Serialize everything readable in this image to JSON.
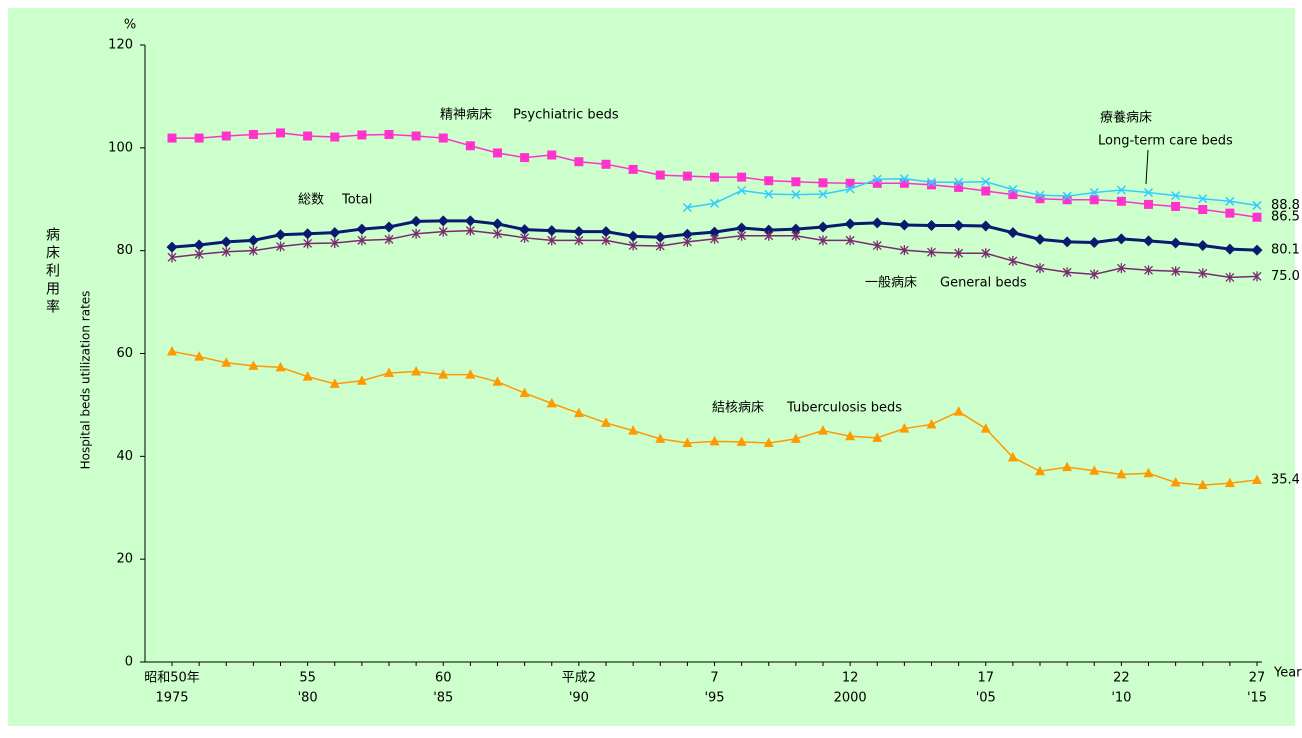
{
  "chart_data": {
    "type": "line",
    "y_unit": "%",
    "y_label_ja": "病床利用率",
    "y_label_en": "Hospital beds utilization rates",
    "x_unit": "Year",
    "categories": [
      "昭和50年",
      null,
      null,
      null,
      null,
      "55",
      null,
      null,
      null,
      null,
      "60",
      null,
      null,
      null,
      null,
      "平成2",
      null,
      null,
      null,
      null,
      "7",
      null,
      null,
      null,
      null,
      "12",
      null,
      null,
      null,
      null,
      "17",
      null,
      null,
      null,
      null,
      "22",
      null,
      null,
      null,
      null,
      "27"
    ],
    "categories_ad": [
      "1975",
      null,
      null,
      null,
      null,
      "'80",
      null,
      null,
      null,
      null,
      "'85",
      null,
      null,
      null,
      null,
      "'90",
      null,
      null,
      null,
      null,
      "'95",
      null,
      null,
      null,
      null,
      "2000",
      null,
      null,
      null,
      null,
      "'05",
      null,
      null,
      null,
      null,
      "'10",
      null,
      null,
      null,
      null,
      "'15"
    ],
    "ylim": [
      0,
      120
    ],
    "yticks": [
      0,
      20,
      40,
      60,
      80,
      100,
      120
    ],
    "series": [
      {
        "name": "精神病床",
        "name_en": "Psychiatric beds",
        "color": "#ff33cc",
        "marker": "square",
        "values": [
          101.9,
          101.9,
          102.3,
          102.6,
          102.9,
          102.3,
          102.1,
          102.5,
          102.6,
          102.3,
          101.9,
          100.4,
          99.0,
          98.1,
          98.6,
          97.3,
          96.8,
          95.8,
          94.7,
          94.5,
          94.3,
          94.3,
          93.6,
          93.4,
          93.2,
          93.1,
          93.1,
          93.1,
          92.8,
          92.3,
          91.6,
          90.9,
          90.1,
          89.9,
          89.9,
          89.6,
          89.0,
          88.6,
          88.0,
          87.3,
          86.5
        ],
        "value_labels": [
          null,
          null,
          null,
          null,
          null,
          null,
          null,
          null,
          null,
          null,
          null,
          null,
          null,
          null,
          null,
          null,
          null,
          null,
          null,
          null,
          null,
          null,
          null,
          null,
          null,
          null,
          null,
          null,
          null,
          null,
          null,
          null,
          null,
          null,
          null,
          null,
          null,
          null,
          null,
          null,
          "86.5"
        ]
      },
      {
        "name": "療養病床",
        "name_en": "Long-term care beds",
        "color": "#33ccff",
        "marker": "x",
        "values": [
          null,
          null,
          null,
          null,
          null,
          null,
          null,
          null,
          null,
          null,
          null,
          null,
          null,
          null,
          null,
          null,
          null,
          null,
          null,
          88.4,
          89.2,
          91.7,
          91.0,
          90.9,
          91.0,
          92.0,
          93.9,
          94.0,
          93.3,
          93.3,
          93.4,
          91.9,
          90.8,
          90.6,
          91.3,
          91.8,
          91.3,
          90.7,
          90.1,
          89.6,
          88.8
        ],
        "value_labels": [
          null,
          null,
          null,
          null,
          null,
          null,
          null,
          null,
          null,
          null,
          null,
          null,
          null,
          null,
          null,
          null,
          null,
          null,
          null,
          null,
          null,
          null,
          null,
          null,
          null,
          null,
          null,
          null,
          null,
          null,
          null,
          null,
          null,
          null,
          null,
          null,
          null,
          null,
          null,
          null,
          "88.8"
        ]
      },
      {
        "name": "総数",
        "name_en": "Total",
        "color": "#0a1a6e",
        "marker": "diamond",
        "values": [
          80.7,
          81.1,
          81.7,
          82.0,
          83.1,
          83.3,
          83.5,
          84.2,
          84.6,
          85.7,
          85.8,
          85.8,
          85.2,
          84.1,
          83.9,
          83.7,
          83.7,
          82.8,
          82.6,
          83.2,
          83.6,
          84.4,
          84.0,
          84.2,
          84.6,
          85.2,
          85.4,
          85.0,
          84.9,
          84.9,
          84.8,
          83.5,
          82.2,
          81.7,
          81.6,
          82.3,
          81.9,
          81.5,
          81.0,
          80.3,
          80.1
        ],
        "value_labels": [
          null,
          null,
          null,
          null,
          null,
          null,
          null,
          null,
          null,
          null,
          null,
          null,
          null,
          null,
          null,
          null,
          null,
          null,
          null,
          null,
          null,
          null,
          null,
          null,
          null,
          null,
          null,
          null,
          null,
          null,
          null,
          null,
          null,
          null,
          null,
          null,
          null,
          null,
          null,
          null,
          "80.1"
        ]
      },
      {
        "name": "一般病床",
        "name_en": "General beds",
        "color": "#7a2a6e",
        "marker": "star",
        "values": [
          78.7,
          79.3,
          79.8,
          80.0,
          80.8,
          81.4,
          81.5,
          82.0,
          82.2,
          83.3,
          83.7,
          83.9,
          83.3,
          82.5,
          82.0,
          82.0,
          82.0,
          81.0,
          80.9,
          81.7,
          82.3,
          82.9,
          82.9,
          82.9,
          82.0,
          82.0,
          81.0,
          80.1,
          79.7,
          79.5,
          79.5,
          78.0,
          76.6,
          75.8,
          75.4,
          76.6,
          76.2,
          76.0,
          75.6,
          74.8,
          75
        ],
        "value_labels": [
          null,
          null,
          null,
          null,
          null,
          null,
          null,
          null,
          null,
          null,
          null,
          null,
          null,
          null,
          null,
          null,
          null,
          null,
          null,
          null,
          null,
          null,
          null,
          null,
          null,
          null,
          null,
          null,
          null,
          null,
          null,
          null,
          null,
          null,
          null,
          null,
          null,
          null,
          null,
          null,
          "75.0"
        ]
      },
      {
        "name": "結核病床",
        "name_en": "Tuberculosis beds",
        "color": "#ff9900",
        "marker": "triangle",
        "values": [
          60.4,
          59.4,
          58.2,
          57.6,
          57.3,
          55.5,
          54.1,
          54.7,
          56.2,
          56.5,
          55.9,
          55.9,
          54.5,
          52.3,
          50.3,
          48.4,
          46.5,
          45.0,
          43.4,
          42.6,
          42.9,
          42.8,
          42.6,
          43.4,
          45.0,
          43.9,
          43.6,
          45.4,
          46.2,
          48.7,
          45.4,
          39.8,
          37.1,
          37.9,
          37.2,
          36.5,
          36.7,
          34.9,
          34.4,
          34.8,
          35.4
        ],
        "value_labels": [
          null,
          null,
          null,
          null,
          null,
          null,
          null,
          null,
          null,
          null,
          null,
          null,
          null,
          null,
          null,
          null,
          null,
          null,
          null,
          null,
          null,
          null,
          null,
          null,
          null,
          null,
          null,
          null,
          null,
          null,
          null,
          null,
          null,
          null,
          null,
          null,
          null,
          null,
          null,
          null,
          "35.4"
        ]
      }
    ]
  }
}
